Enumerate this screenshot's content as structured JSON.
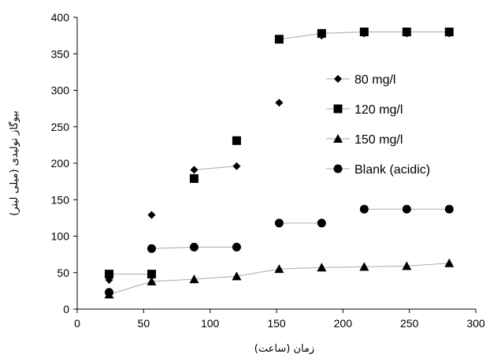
{
  "chart_data": {
    "type": "scatter",
    "xlabel": "زمان (ساعت)",
    "ylabel": "بیوگاز تولیدی (میلی لیتر)",
    "xlim": [
      0,
      300
    ],
    "ylim": [
      0,
      400
    ],
    "xticks": [
      0,
      50,
      100,
      150,
      200,
      250,
      300
    ],
    "yticks": [
      0,
      50,
      100,
      150,
      200,
      250,
      300,
      350,
      400
    ],
    "grid": false,
    "legend_position": "right",
    "series": [
      {
        "name": "80 mg/l",
        "marker": "diamond",
        "x": [
          24,
          56,
          88,
          120,
          152,
          184,
          216,
          248,
          280
        ],
        "y": [
          40,
          129,
          191,
          196,
          283,
          375,
          378,
          378,
          378
        ]
      },
      {
        "name": "120 mg/l",
        "marker": "square",
        "x": [
          24,
          56,
          88,
          120,
          152,
          184,
          216,
          248,
          280
        ],
        "y": [
          48,
          48,
          179,
          231,
          370,
          378,
          380,
          380,
          380
        ]
      },
      {
        "name": "150 mg/l",
        "marker": "triangle",
        "x": [
          24,
          56,
          88,
          120,
          152,
          184,
          216,
          248,
          280
        ],
        "y": [
          20,
          38,
          41,
          45,
          55,
          57,
          58,
          59,
          63
        ]
      },
      {
        "name": "Blank (acidic)",
        "marker": "circle",
        "x": [
          24,
          56,
          88,
          120,
          152,
          184,
          216,
          248,
          280
        ],
        "y": [
          23,
          83,
          85,
          85,
          118,
          118,
          137,
          137,
          137
        ]
      }
    ],
    "connector_lines": [
      {
        "series": "150 mg/l",
        "x": [
          24,
          56,
          88,
          120,
          152,
          184,
          216,
          248,
          280
        ],
        "y": [
          20,
          38,
          41,
          45,
          55,
          57,
          58,
          59,
          63
        ]
      },
      {
        "series": "Blank (acidic)",
        "x": [
          56,
          88,
          120
        ],
        "y": [
          83,
          85,
          85
        ]
      },
      {
        "series": "Blank (acidic)",
        "x": [
          152,
          184
        ],
        "y": [
          118,
          118
        ]
      },
      {
        "series": "Blank (acidic)",
        "x": [
          216,
          248,
          280
        ],
        "y": [
          137,
          137,
          137
        ]
      },
      {
        "series": "120 mg/l",
        "x": [
          24,
          56
        ],
        "y": [
          48,
          48
        ]
      },
      {
        "series": "120 mg/l",
        "x": [
          152,
          184,
          216,
          248,
          280
        ],
        "y": [
          370,
          378,
          380,
          380,
          380
        ]
      },
      {
        "series": "80 mg/l",
        "x": [
          88,
          120
        ],
        "y": [
          191,
          196
        ]
      }
    ]
  }
}
